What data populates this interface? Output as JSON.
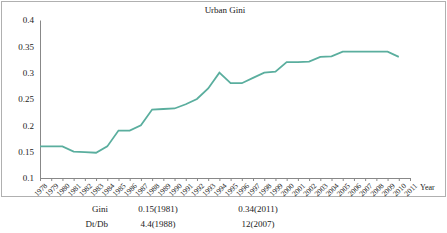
{
  "chart_data": {
    "type": "line",
    "title": "Urban Gini",
    "x_label": "Year",
    "categories": [
      "1978",
      "1979",
      "1980",
      "1981",
      "1982",
      "1983",
      "1984",
      "1985",
      "1986",
      "1987",
      "1988",
      "1989",
      "1990",
      "1991",
      "1992",
      "1993",
      "1994",
      "1995",
      "1996",
      "1997",
      "1998",
      "1999",
      "2000",
      "2001",
      "2002",
      "2003",
      "2004",
      "2005",
      "2006",
      "2007",
      "2008",
      "2009",
      "2010",
      "2011"
    ],
    "values": [
      0.16,
      0.16,
      0.16,
      0.15,
      0.149,
      0.148,
      0.16,
      0.19,
      0.19,
      0.2,
      0.23,
      0.231,
      0.232,
      0.24,
      0.25,
      0.27,
      0.3,
      0.28,
      0.28,
      0.29,
      0.3,
      0.302,
      0.32,
      0.32,
      0.321,
      0.33,
      0.331,
      0.34,
      0.34,
      0.34,
      0.34,
      0.34,
      0.33,
      null
    ],
    "color": "#5aae9e",
    "ylim": [
      0.1,
      0.4
    ],
    "yticks": [
      0.1,
      0.15,
      0.2,
      0.25,
      0.3,
      0.35,
      0.4
    ],
    "grid": false,
    "annotations": [
      [
        "Gini",
        "0.15(1981)",
        "0.34(2011)"
      ],
      [
        "Dt/Db",
        "4.4(1988)",
        "12(2007)"
      ]
    ]
  }
}
